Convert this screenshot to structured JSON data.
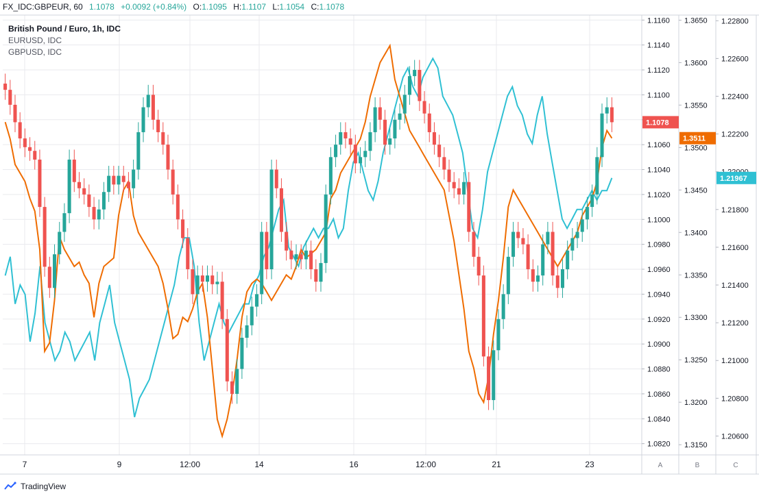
{
  "header": {
    "symbol": "FX_IDC:GBPEUR, 60",
    "last": "1.1078",
    "change": "+0.0092 (+0.84%)",
    "o_label": "O:",
    "o_value": "1.1095",
    "h_label": "H:",
    "h_value": "1.1107",
    "l_label": "L:",
    "l_value": "1.1054",
    "c_label": "C:",
    "c_value": "1.1078"
  },
  "legend": {
    "main": "British Pound / Euro, 1h, IDC",
    "series2": "EURUSD, IDC",
    "series3": "GBPUSD, IDC"
  },
  "branding": {
    "name": "TradingView",
    "icon": "tradingview-logo-icon"
  },
  "colors": {
    "up": "#26a69a",
    "down": "#ef5350",
    "eurusd": "#ef6c00",
    "gbpusd": "#2fc0d3",
    "grid": "#e9eaee",
    "axis_text": "#131722",
    "header_value": "#26a69a"
  },
  "chart_data": {
    "type": "line",
    "x_ticks": [
      "7",
      "9",
      "12:00",
      "14",
      "16",
      "12:00",
      "21",
      "23"
    ],
    "axis_buttons": [
      "A",
      "B",
      "C"
    ],
    "axes": {
      "A": {
        "ticks": [
          "1.1160",
          "1.1140",
          "1.1120",
          "1.1100",
          "1.1080",
          "1.1060",
          "1.1040",
          "1.1020",
          "1.1000",
          "1.0980",
          "1.0960",
          "1.0940",
          "1.0920",
          "1.0900",
          "1.0880",
          "1.0860",
          "1.0840",
          "1.0820"
        ],
        "ylim": [
          1.0811,
          1.1164
        ],
        "last_label": "1.1078"
      },
      "B": {
        "ticks": [
          "1.3650",
          "1.3600",
          "1.3550",
          "1.3500",
          "1.3450",
          "1.3400",
          "1.3350",
          "1.3300",
          "1.3250",
          "1.3200",
          "1.3150"
        ],
        "ylim": [
          1.3138,
          1.3656
        ],
        "last_label": "1.3511"
      },
      "C": {
        "ticks": [
          "1.22800",
          "1.22600",
          "1.22400",
          "1.22200",
          "1.22000",
          "1.21800",
          "1.21600",
          "1.21400",
          "1.21200",
          "1.21000",
          "1.20800",
          "1.20600"
        ],
        "ylim": [
          1.205,
          1.2283
        ],
        "last_label": "1.21967"
      }
    },
    "series": [
      {
        "name": "British Pound / Euro, 1h, IDC",
        "axis": "A",
        "style": "candles",
        "close": [
          1.1104,
          1.1092,
          1.1078,
          1.1065,
          1.1058,
          1.1055,
          1.1048,
          1.101,
          1.0962,
          1.0945,
          1.0972,
          1.099,
          1.1005,
          1.1048,
          1.103,
          1.1025,
          1.102,
          1.101,
          1.1,
          1.1008,
          1.1022,
          1.1035,
          1.1028,
          1.1035,
          1.103,
          1.1025,
          1.104,
          1.107,
          1.109,
          1.11,
          1.108,
          1.107,
          1.106,
          1.104,
          1.102,
          1.1,
          1.0985,
          1.096,
          1.094,
          1.0955,
          1.095,
          1.0955,
          1.0948,
          1.095,
          1.092,
          1.087,
          1.086,
          1.088,
          1.0905,
          1.0915,
          1.093,
          1.094,
          1.099,
          1.096,
          1.104,
          1.1025,
          1.099,
          1.0975,
          1.0968,
          1.0972,
          1.0968,
          1.0975,
          1.096,
          1.095,
          1.0965,
          1.102,
          1.105,
          1.106,
          1.107,
          1.1065,
          1.106,
          1.1045,
          1.105,
          1.1055,
          1.107,
          1.109,
          1.108,
          1.106,
          1.1065,
          1.108,
          1.1085,
          1.11,
          1.1115,
          1.112,
          1.1095,
          1.1085,
          1.107,
          1.106,
          1.105,
          1.104,
          1.103,
          1.1025,
          1.102,
          1.103,
          1.099,
          1.097,
          1.0955,
          1.089,
          1.0855,
          1.0895,
          1.092,
          1.094,
          1.097,
          1.099,
          1.0985,
          1.098,
          1.096,
          1.095,
          1.0955,
          1.098,
          1.099,
          1.0955,
          1.0945,
          1.096,
          1.0975,
          1.0985,
          1.099,
          1.1,
          1.101,
          1.102,
          1.105,
          1.1085,
          1.109,
          1.1078
        ]
      },
      {
        "name": "EURUSD, IDC",
        "axis": "B",
        "style": "line",
        "values": [
          1.353,
          1.351,
          1.348,
          1.347,
          1.346,
          1.344,
          1.3425,
          1.338,
          1.326,
          1.327,
          1.332,
          1.3395,
          1.338,
          1.337,
          1.336,
          1.3365,
          1.335,
          1.334,
          1.33,
          1.334,
          1.336,
          1.3365,
          1.337,
          1.342,
          1.345,
          1.346,
          1.342,
          1.34,
          1.339,
          1.338,
          1.337,
          1.336,
          1.334,
          1.331,
          1.3275,
          1.328,
          1.33,
          1.3295,
          1.331,
          1.333,
          1.334,
          1.33,
          1.324,
          1.318,
          1.316,
          1.318,
          1.321,
          1.325,
          1.33,
          1.333,
          1.334,
          1.3345,
          1.334,
          1.333,
          1.332,
          1.333,
          1.334,
          1.335,
          1.3345,
          1.336,
          1.338,
          1.337,
          1.3375,
          1.338,
          1.339,
          1.34,
          1.344,
          1.345,
          1.347,
          1.348,
          1.349,
          1.35,
          1.351,
          1.353,
          1.356,
          1.358,
          1.36,
          1.361,
          1.362,
          1.358,
          1.356,
          1.354,
          1.352,
          1.351,
          1.35,
          1.349,
          1.348,
          1.347,
          1.346,
          1.345,
          1.342,
          1.339,
          1.335,
          1.331,
          1.326,
          1.324,
          1.321,
          1.32,
          1.323,
          1.328,
          1.332,
          1.337,
          1.343,
          1.345,
          1.344,
          1.343,
          1.342,
          1.341,
          1.34,
          1.339,
          1.338,
          1.337,
          1.336,
          1.337,
          1.338,
          1.339,
          1.34,
          1.342,
          1.343,
          1.344,
          1.346,
          1.35,
          1.352,
          1.3511
        ]
      },
      {
        "name": "GBPUSD, IDC",
        "axis": "C",
        "style": "line",
        "values": [
          1.2145,
          1.2155,
          1.213,
          1.214,
          1.2135,
          1.211,
          1.2125,
          1.215,
          1.212,
          1.211,
          1.21,
          1.2105,
          1.2115,
          1.211,
          1.21,
          1.2105,
          1.211,
          1.2115,
          1.21,
          1.212,
          1.213,
          1.214,
          1.212,
          1.211,
          1.21,
          1.209,
          1.207,
          1.208,
          1.2085,
          1.209,
          1.21,
          1.211,
          1.212,
          1.213,
          1.214,
          1.2155,
          1.2165,
          1.2165,
          1.215,
          1.212,
          1.21,
          1.211,
          1.212,
          1.213,
          1.212,
          1.2115,
          1.212,
          1.2125,
          1.213,
          1.213,
          1.214,
          1.2145,
          1.2155,
          1.216,
          1.217,
          1.218,
          1.2185,
          1.216,
          1.2155,
          1.215,
          1.216,
          1.2165,
          1.217,
          1.2165,
          1.217,
          1.217,
          1.2175,
          1.2165,
          1.217,
          1.219,
          1.2205,
          1.221,
          1.22,
          1.219,
          1.2185,
          1.2195,
          1.221,
          1.222,
          1.223,
          1.224,
          1.225,
          1.2255,
          1.2245,
          1.224,
          1.225,
          1.2255,
          1.226,
          1.2255,
          1.224,
          1.2235,
          1.223,
          1.222,
          1.221,
          1.219,
          1.217,
          1.2165,
          1.218,
          1.22,
          1.221,
          1.222,
          1.223,
          1.224,
          1.2245,
          1.2235,
          1.223,
          1.222,
          1.2215,
          1.223,
          1.224,
          1.222,
          1.2205,
          1.219,
          1.2175,
          1.217,
          1.2175,
          1.218,
          1.218,
          1.2185,
          1.219,
          1.2185,
          1.219,
          1.219,
          1.21967
        ]
      }
    ]
  }
}
